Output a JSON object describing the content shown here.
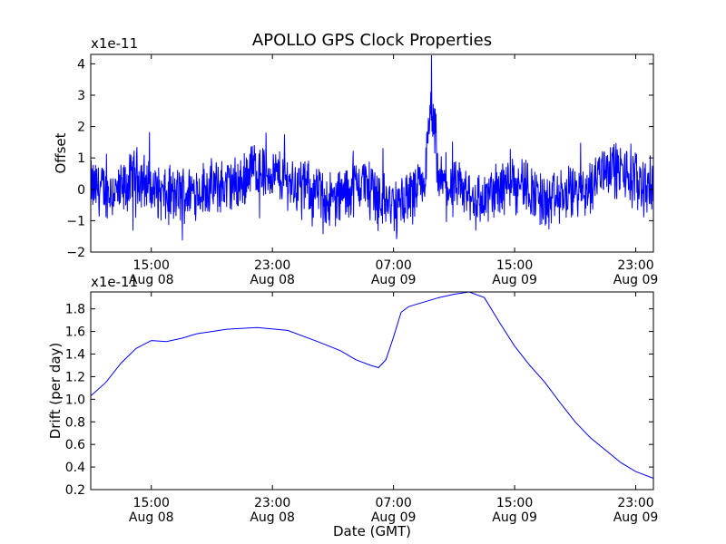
{
  "chart_data": {
    "title": "APOLLO GPS Clock Properties",
    "shared_x": {
      "label": "Date (GMT)",
      "range_hours_gmt": [
        "Aug 08 11:00",
        "Aug 10 00:10"
      ],
      "ticks": [
        {
          "time": "15:00",
          "date": "Aug 08"
        },
        {
          "time": "23:00",
          "date": "Aug 08"
        },
        {
          "time": "07:00",
          "date": "Aug 09"
        },
        {
          "time": "15:00",
          "date": "Aug 09"
        },
        {
          "time": "23:00",
          "date": "Aug 09"
        }
      ]
    },
    "panels": [
      {
        "type": "line",
        "ylabel": "Offset",
        "exponent_label": "x1e-11",
        "ylim": [
          -2,
          4.3
        ],
        "yticks": [
          "−2",
          "−1",
          "0",
          "1",
          "2",
          "3",
          "4"
        ],
        "color": "#0000ff",
        "trend_note_points": [
          [
            "Aug 08 11:00",
            0.1
          ],
          [
            "Aug 08 13:00",
            -0.2
          ],
          [
            "Aug 08 14:00",
            0.8
          ],
          [
            "Aug 08 16:00",
            -0.5
          ],
          [
            "Aug 08 18:00",
            0.0
          ],
          [
            "Aug 08 21:00",
            0.3
          ],
          [
            "Aug 08 21:30",
            1.2
          ],
          [
            "Aug 09 00:00",
            0.5
          ],
          [
            "Aug 09 03:00",
            -0.6
          ],
          [
            "Aug 09 05:00",
            0.4
          ],
          [
            "Aug 09 07:00",
            -1.0
          ],
          [
            "Aug 09 09:00",
            0.1
          ],
          [
            "Aug 09 09:30",
            4.2
          ],
          [
            "Aug 09 10:00",
            0.3
          ],
          [
            "Aug 09 13:00",
            -0.6
          ],
          [
            "Aug 09 15:00",
            0.8
          ],
          [
            "Aug 09 17:00",
            -0.8
          ],
          [
            "Aug 09 20:00",
            0.2
          ],
          [
            "Aug 09 21:00",
            1.3
          ],
          [
            "Aug 10 00:10",
            0.1
          ]
        ]
      },
      {
        "type": "line",
        "ylabel": "Drift (per day)",
        "exponent_label": "x1e-11",
        "ylim": [
          0.2,
          1.95
        ],
        "yticks": [
          "0.2",
          "0.4",
          "0.6",
          "0.8",
          "1.0",
          "1.2",
          "1.4",
          "1.6",
          "1.8"
        ],
        "color": "#0000ff",
        "points": [
          [
            "Aug 08 11:00",
            1.03
          ],
          [
            "Aug 08 12:00",
            1.15
          ],
          [
            "Aug 08 13:00",
            1.32
          ],
          [
            "Aug 08 14:00",
            1.45
          ],
          [
            "Aug 08 15:00",
            1.52
          ],
          [
            "Aug 08 16:00",
            1.51
          ],
          [
            "Aug 08 17:00",
            1.54
          ],
          [
            "Aug 08 18:00",
            1.58
          ],
          [
            "Aug 08 20:00",
            1.62
          ],
          [
            "Aug 08 22:00",
            1.635
          ],
          [
            "Aug 09 00:00",
            1.61
          ],
          [
            "Aug 09 02:00",
            1.51
          ],
          [
            "Aug 09 03:30",
            1.43
          ],
          [
            "Aug 09 04:30",
            1.35
          ],
          [
            "Aug 09 05:30",
            1.3
          ],
          [
            "Aug 09 06:00",
            1.28
          ],
          [
            "Aug 09 06:30",
            1.35
          ],
          [
            "Aug 09 07:00",
            1.55
          ],
          [
            "Aug 09 07:30",
            1.77
          ],
          [
            "Aug 09 08:00",
            1.82
          ],
          [
            "Aug 09 09:00",
            1.86
          ],
          [
            "Aug 09 10:00",
            1.9
          ],
          [
            "Aug 09 11:00",
            1.93
          ],
          [
            "Aug 09 12:00",
            1.95
          ],
          [
            "Aug 09 13:00",
            1.9
          ],
          [
            "Aug 09 14:00",
            1.68
          ],
          [
            "Aug 09 15:00",
            1.47
          ],
          [
            "Aug 09 16:00",
            1.3
          ],
          [
            "Aug 09 17:00",
            1.15
          ],
          [
            "Aug 09 18:00",
            0.97
          ],
          [
            "Aug 09 19:00",
            0.8
          ],
          [
            "Aug 09 20:00",
            0.66
          ],
          [
            "Aug 09 21:00",
            0.55
          ],
          [
            "Aug 09 22:00",
            0.44
          ],
          [
            "Aug 09 23:00",
            0.36
          ],
          [
            "Aug 10 00:10",
            0.3
          ]
        ]
      }
    ]
  }
}
